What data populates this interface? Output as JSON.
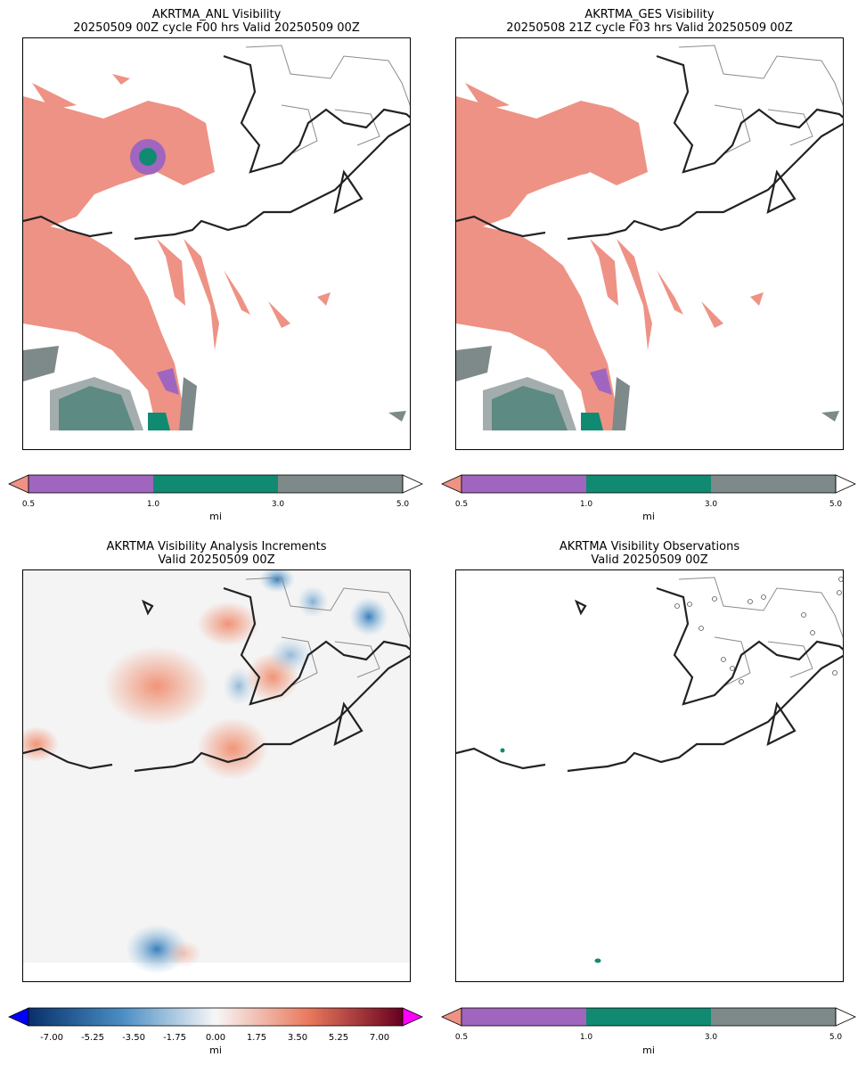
{
  "panels": [
    {
      "title_line1": "AKRTMA_ANL Visibility",
      "title_line2": "20250509 00Z cycle F00 hrs Valid 20250509 00Z"
    },
    {
      "title_line1": "AKRTMA_GES Visibility",
      "title_line2": "20250508 21Z cycle F03 hrs Valid 20250509 00Z"
    },
    {
      "title_line1": "AKRTMA Visibility Analysis Increments",
      "title_line2": "Valid 20250509 00Z"
    },
    {
      "title_line1": "AKRTMA Visibility Observations",
      "title_line2": "Valid 20250509 00Z"
    }
  ],
  "vis_colorbar": {
    "ticks": [
      "0.5",
      "1.0",
      "3.0",
      "5.0"
    ],
    "unit": "mi",
    "colors": {
      "under": "#ee9285",
      "c1": "#a066bf",
      "c2": "#118a72",
      "c3": "#7e8a8a",
      "over": "#ffffff"
    }
  },
  "inc_colorbar": {
    "ticks": [
      "-7.00",
      "-5.25",
      "-3.50",
      "-1.75",
      "0.00",
      "1.75",
      "3.50",
      "5.25",
      "7.00"
    ],
    "unit": "mi",
    "colors": {
      "under": "#0000ff",
      "over": "#ff00ff",
      "low": "#08306b",
      "mid": "#f7f7f7",
      "high": "#67001f"
    }
  },
  "map_colors": {
    "fog": "#ee9285",
    "low_vis": "#a066bf",
    "mid_vis": "#118a72",
    "high_vis": "#7e8a8a",
    "coast": "#222222",
    "border": "#8c8c8c",
    "inc_bg": "#f4f4f4",
    "inc_pos": "#f08a6a",
    "inc_neg": "#5a9bd0"
  }
}
